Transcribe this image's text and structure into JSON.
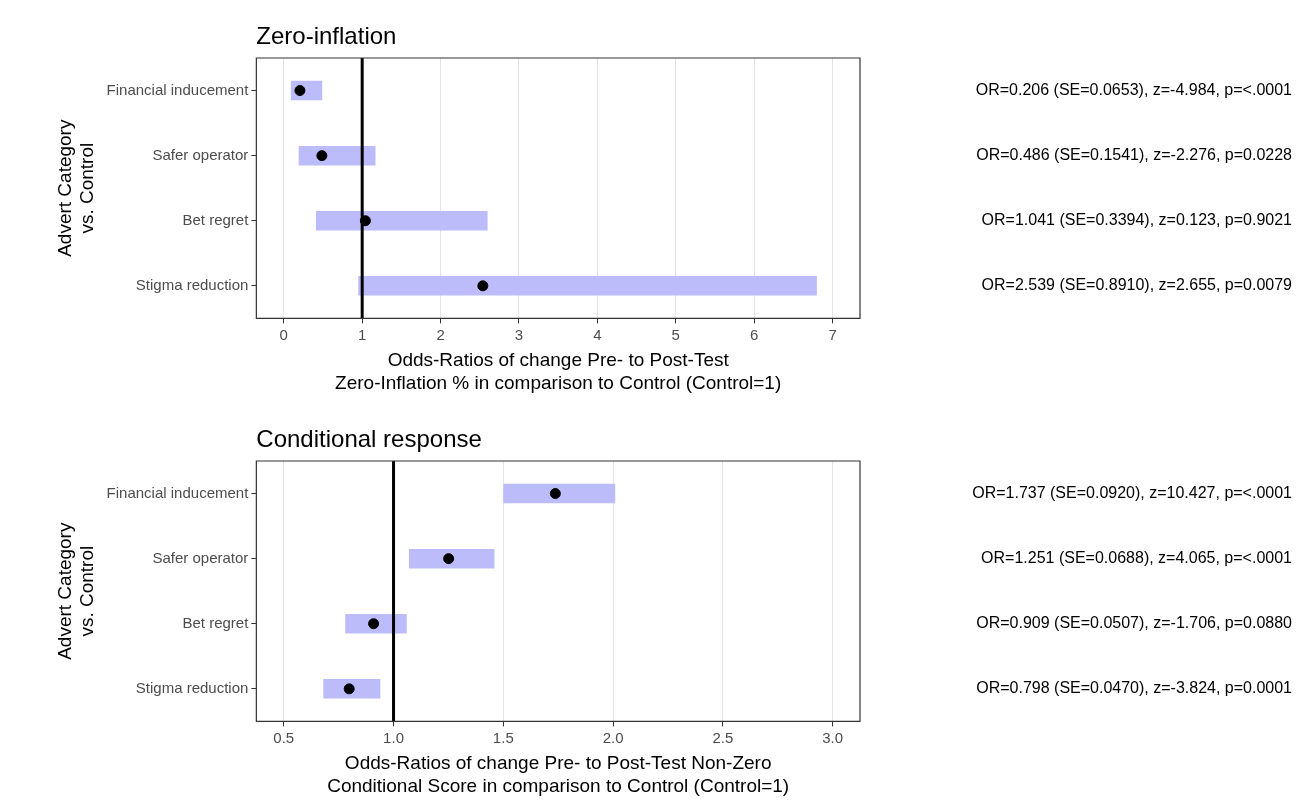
{
  "chart_data": [
    {
      "type": "bar",
      "orientation": "horizontal",
      "title": "Zero-inflation",
      "ylabel": "Advert Category\nvs. Control",
      "xlabel": "Odds-Ratios of change Pre- to Post-Test\nZero-Inflation % in comparison to Control (Control=1)",
      "categories": [
        "Financial inducement",
        "Safer operator",
        "Bet regret",
        "Stigma reduction"
      ],
      "series": [
        {
          "color": "#bcbcfa",
          "base": [
            0.09,
            0.19,
            0.41,
            0.95
          ],
          "values": [
            0.4,
            0.98,
            2.19,
            5.85
          ]
        },
        {
          "type": "scatter",
          "color": "#000000",
          "marker": "circle",
          "values": [
            0.206,
            0.486,
            1.041,
            2.539
          ]
        }
      ],
      "xlim": [
        -0.35,
        7.35
      ],
      "xticks": [
        0,
        1,
        2,
        3,
        4,
        5,
        6,
        7
      ],
      "grid": "x",
      "legend": false,
      "ref_lines": [
        {
          "axis": "x",
          "value": 1,
          "color": "#000000"
        }
      ],
      "annotations": [
        "OR=0.206 (SE=0.0653), z=-4.984, p=<.0001",
        "OR=0.486 (SE=0.1541), z=-2.276, p=0.0228",
        "OR=1.041 (SE=0.3394), z=0.123, p=0.9021",
        "OR=2.539 (SE=0.8910), z=2.655, p=0.0079"
      ]
    },
    {
      "type": "bar",
      "orientation": "horizontal",
      "title": "Conditional response",
      "ylabel": "Advert Category\nvs. Control",
      "xlabel": "Odds-Ratios of change Pre- to Post-Test Non-Zero\nConditional Score in comparison to Control (Control=1)",
      "categories": [
        "Financial inducement",
        "Safer operator",
        "Bet regret",
        "Stigma reduction"
      ],
      "series": [
        {
          "color": "#bcbcfa",
          "base": [
            1.5,
            1.07,
            0.78,
            0.68
          ],
          "values": [
            0.51,
            0.39,
            0.28,
            0.26
          ]
        },
        {
          "type": "scatter",
          "color": "#000000",
          "marker": "circle",
          "values": [
            1.737,
            1.251,
            0.909,
            0.798
          ]
        }
      ],
      "xlim": [
        0.375,
        3.125
      ],
      "xticks": [
        {
          "value": 0.5,
          "label": "0.5"
        },
        {
          "value": 1,
          "label": "1.0"
        },
        {
          "value": 1.5,
          "label": "1.5"
        },
        {
          "value": 2,
          "label": "2.0"
        },
        {
          "value": 2.5,
          "label": "2.5"
        },
        {
          "value": 3,
          "label": "3.0"
        }
      ],
      "grid": "x",
      "legend": false,
      "ref_lines": [
        {
          "axis": "x",
          "value": 1,
          "color": "#000000"
        }
      ],
      "annotations": [
        "OR=1.737 (SE=0.0920), z=10.427, p=<.0001",
        "OR=1.251 (SE=0.0688), z=4.065, p=<.0001",
        "OR=0.909 (SE=0.0507), z=-1.706, p=0.0880",
        "OR=0.798 (SE=0.0470), z=-3.824, p=0.0001"
      ]
    }
  ]
}
